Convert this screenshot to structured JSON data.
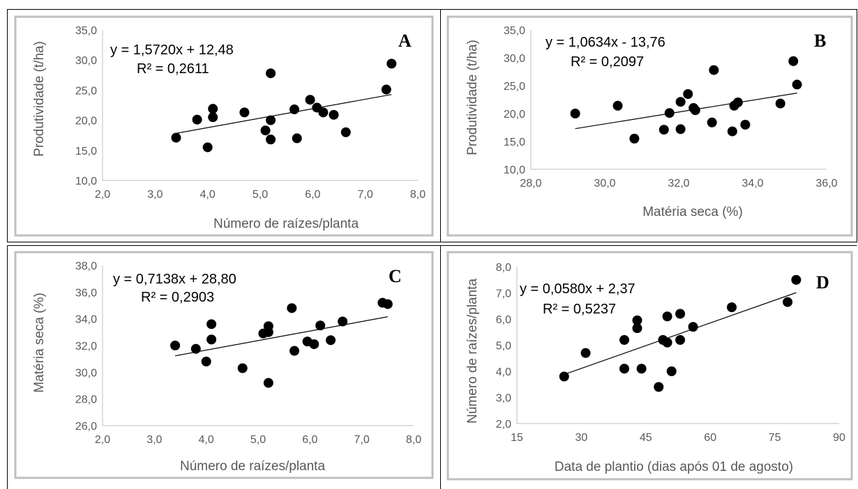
{
  "colors": {
    "frame": "#bfbfbf",
    "marker": "#000000",
    "trend": "#000000",
    "tick_text": "#595959"
  },
  "chart_data": [
    {
      "type": "scatter",
      "letter": "A",
      "equation": "y = 1,5720x + 12,48",
      "r2": "R² = 0,2611",
      "xlabel": "Número de raízes/planta",
      "ylabel": "Produtividade (t/ha)",
      "xlim": [
        2,
        8
      ],
      "ylim": [
        10,
        35
      ],
      "xticks": [
        "2,0",
        "3,0",
        "4,0",
        "5,0",
        "6,0",
        "7,0",
        "8,0"
      ],
      "yticks": [
        "10,0",
        "15,0",
        "20,0",
        "25,0",
        "30,0",
        "35,0"
      ],
      "trend": {
        "slope": 1.572,
        "intercept": 12.48,
        "x_range": [
          3.4,
          7.5
        ]
      },
      "points": [
        [
          3.4,
          17.1
        ],
        [
          3.8,
          20.1
        ],
        [
          4.0,
          15.5
        ],
        [
          4.1,
          20.5
        ],
        [
          4.1,
          21.9
        ],
        [
          4.7,
          21.3
        ],
        [
          5.1,
          18.3
        ],
        [
          5.2,
          20.0
        ],
        [
          5.2,
          27.8
        ],
        [
          5.2,
          16.8
        ],
        [
          5.65,
          21.8
        ],
        [
          5.7,
          17.0
        ],
        [
          5.95,
          23.4
        ],
        [
          6.08,
          22.1
        ],
        [
          6.2,
          21.3
        ],
        [
          6.4,
          20.9
        ],
        [
          6.63,
          18.0
        ],
        [
          7.4,
          25.1
        ],
        [
          7.5,
          29.4
        ]
      ]
    },
    {
      "type": "scatter",
      "letter": "B",
      "equation": "y = 1,0634x - 13,76",
      "r2": "R² = 0,2097",
      "xlabel": "Matéria seca (%)",
      "ylabel": "Produtividade (t/ha)",
      "xlim": [
        28,
        36
      ],
      "ylim": [
        10,
        35
      ],
      "xticks": [
        "28,0",
        "30,0",
        "32,0",
        "34,0",
        "36,0"
      ],
      "yticks": [
        "10,0",
        "15,0",
        "20,0",
        "25,0",
        "30,0",
        "35,0"
      ],
      "trend": {
        "slope": 1.0634,
        "intercept": -13.76,
        "x_range": [
          29.2,
          35.2
        ]
      },
      "points": [
        [
          29.2,
          20.0
        ],
        [
          30.35,
          21.4
        ],
        [
          30.8,
          15.5
        ],
        [
          31.6,
          17.1
        ],
        [
          31.75,
          20.1
        ],
        [
          32.05,
          17.2
        ],
        [
          32.05,
          22.1
        ],
        [
          32.25,
          23.5
        ],
        [
          32.4,
          21.0
        ],
        [
          32.45,
          20.6
        ],
        [
          32.9,
          18.4
        ],
        [
          32.95,
          27.8
        ],
        [
          33.45,
          16.8
        ],
        [
          33.5,
          21.4
        ],
        [
          33.6,
          22.0
        ],
        [
          33.8,
          18.0
        ],
        [
          34.75,
          21.8
        ],
        [
          35.1,
          29.4
        ],
        [
          35.2,
          25.2
        ]
      ]
    },
    {
      "type": "scatter",
      "letter": "C",
      "equation": "y = 0,7138x + 28,80",
      "r2": "R² = 0,2903",
      "xlabel": "Número de raízes/planta",
      "ylabel": "Matéria seca (%)",
      "xlim": [
        2,
        8
      ],
      "ylim": [
        26,
        38
      ],
      "xticks": [
        "2,0",
        "3,0",
        "4,0",
        "5,0",
        "6,0",
        "7,0",
        "8,0"
      ],
      "yticks": [
        "26,0",
        "28,0",
        "30,0",
        "32,0",
        "34,0",
        "36,0",
        "38,0"
      ],
      "trend": {
        "slope": 0.7138,
        "intercept": 28.8,
        "x_range": [
          3.4,
          7.5
        ]
      },
      "points": [
        [
          3.4,
          32.0
        ],
        [
          3.8,
          31.75
        ],
        [
          4.0,
          30.8
        ],
        [
          4.1,
          32.45
        ],
        [
          4.1,
          33.6
        ],
        [
          4.7,
          30.3
        ],
        [
          5.1,
          32.9
        ],
        [
          5.2,
          29.2
        ],
        [
          5.2,
          33.0
        ],
        [
          5.2,
          33.45
        ],
        [
          5.65,
          34.8
        ],
        [
          5.7,
          31.6
        ],
        [
          5.95,
          32.3
        ],
        [
          6.08,
          32.1
        ],
        [
          6.2,
          33.5
        ],
        [
          6.4,
          32.4
        ],
        [
          6.63,
          33.8
        ],
        [
          7.4,
          35.2
        ],
        [
          7.5,
          35.1
        ]
      ]
    },
    {
      "type": "scatter",
      "letter": "D",
      "equation": "y = 0,0580x + 2,37",
      "r2": "R² = 0,5237",
      "xlabel": "Data de plantio (dias após 01 de agosto)",
      "ylabel": "Número de raízes/planta",
      "xlim": [
        15,
        90
      ],
      "ylim": [
        2,
        8
      ],
      "xticks": [
        "15",
        "30",
        "45",
        "60",
        "75",
        "90"
      ],
      "yticks": [
        "2,0",
        "3,0",
        "4,0",
        "5,0",
        "6,0",
        "7,0",
        "8,0"
      ],
      "trend": {
        "slope": 0.058,
        "intercept": 2.37,
        "x_range": [
          26,
          80
        ]
      },
      "points": [
        [
          26,
          3.8
        ],
        [
          31,
          4.7
        ],
        [
          40,
          4.1
        ],
        [
          40,
          5.2
        ],
        [
          43,
          5.65
        ],
        [
          43,
          5.95
        ],
        [
          44,
          4.1
        ],
        [
          48,
          3.4
        ],
        [
          49,
          5.2
        ],
        [
          50,
          5.1
        ],
        [
          50,
          6.1
        ],
        [
          51,
          4.0
        ],
        [
          53,
          5.2
        ],
        [
          53,
          6.2
        ],
        [
          56,
          5.7
        ],
        [
          65,
          6.45
        ],
        [
          78,
          6.65
        ],
        [
          80,
          7.5
        ]
      ]
    }
  ]
}
